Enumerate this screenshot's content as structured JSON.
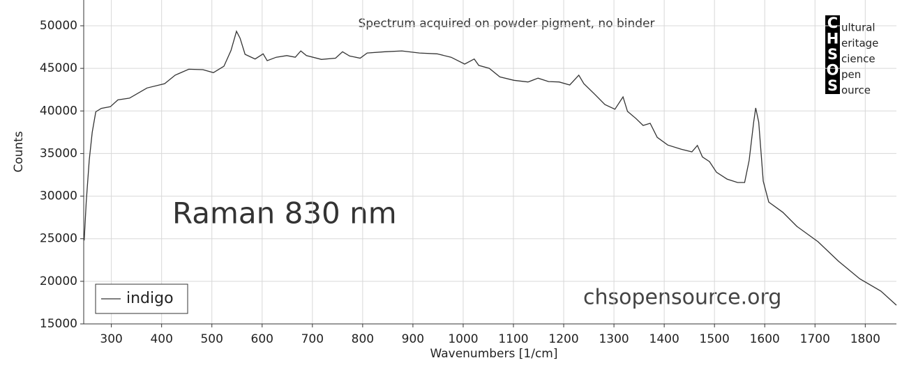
{
  "chart_data": {
    "type": "line",
    "annotations": [
      "Spectrum acquired on powder pigment, no binder",
      "Raman 830 nm",
      "chsopensource.org"
    ],
    "xlabel": "Wavenumbers [1/cm]",
    "ylabel": "Counts",
    "logo": {
      "letters": [
        "C",
        "H",
        "S",
        "O",
        "S"
      ],
      "words": [
        "ultural",
        "eritage",
        "cience",
        "pen",
        "ource"
      ]
    },
    "x": [
      246,
      250,
      256,
      262,
      269,
      280,
      298,
      313,
      336,
      371,
      406,
      427,
      454,
      482,
      503,
      524,
      538,
      549,
      556,
      566,
      586,
      602,
      610,
      628,
      649,
      666,
      677,
      688,
      718,
      746,
      760,
      774,
      795,
      809,
      844,
      878,
      913,
      948,
      976,
      1003,
      1022,
      1031,
      1052,
      1073,
      1101,
      1129,
      1149,
      1170,
      1191,
      1212,
      1230,
      1240,
      1261,
      1282,
      1302,
      1318,
      1327,
      1344,
      1358,
      1372,
      1386,
      1407,
      1434,
      1455,
      1466,
      1476,
      1490,
      1504,
      1525,
      1546,
      1560,
      1569,
      1578,
      1582,
      1588,
      1597,
      1608,
      1636,
      1664,
      1706,
      1747,
      1789,
      1831,
      1862
    ],
    "series": [
      {
        "name": "indigo",
        "color": "#333333",
        "values": [
          24800,
          29300,
          34200,
          37500,
          39900,
          40300,
          40500,
          41300,
          41500,
          42700,
          43200,
          44200,
          44900,
          44850,
          44500,
          45250,
          47100,
          49350,
          48550,
          46650,
          46100,
          46700,
          45900,
          46300,
          46500,
          46300,
          47050,
          46500,
          46050,
          46200,
          46950,
          46450,
          46200,
          46800,
          46950,
          47050,
          46800,
          46700,
          46300,
          45500,
          46100,
          45350,
          45000,
          44000,
          43600,
          43400,
          43850,
          43450,
          43400,
          43050,
          44200,
          43200,
          42000,
          40750,
          40200,
          41650,
          39950,
          39100,
          38300,
          38550,
          36900,
          36000,
          35500,
          35200,
          35950,
          34600,
          34050,
          32800,
          32000,
          31600,
          31600,
          34200,
          38700,
          40350,
          38700,
          31750,
          29300,
          28100,
          26450,
          24650,
          22350,
          20300,
          18850,
          17200
        ]
      }
    ],
    "xlim": [
      245,
      1862
    ],
    "ylim": [
      15000,
      53025
    ],
    "xticks": [
      300,
      400,
      500,
      600,
      700,
      800,
      900,
      1000,
      1100,
      1200,
      1300,
      1400,
      1500,
      1600,
      1700,
      1800
    ],
    "yticks": [
      15000,
      20000,
      25000,
      30000,
      35000,
      40000,
      45000,
      50000
    ],
    "grid": true,
    "legend": "lower left"
  }
}
